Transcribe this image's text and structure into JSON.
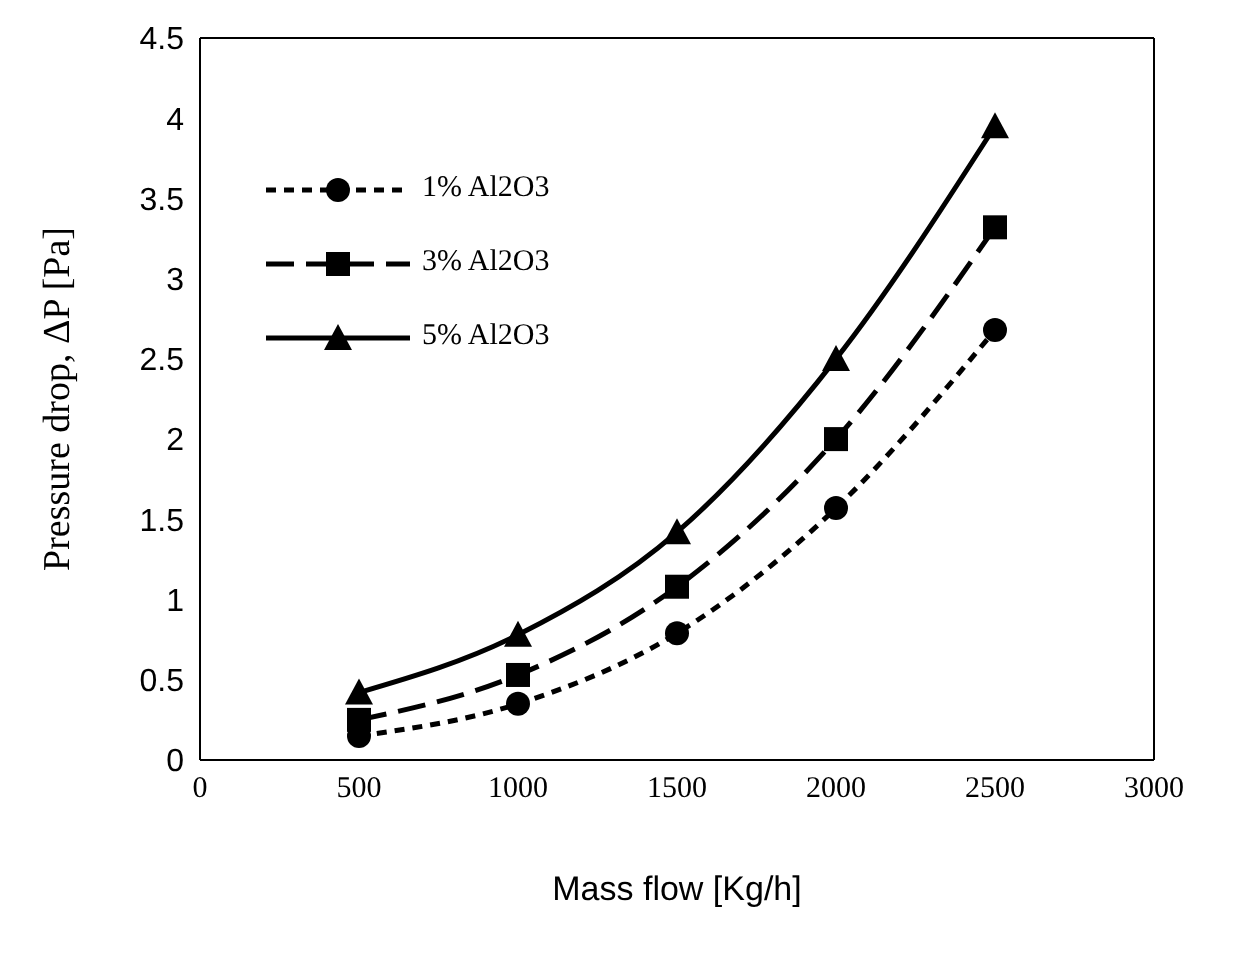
{
  "chart_data": {
    "type": "line",
    "xlabel": "Mass flow [Kg/h]",
    "ylabel": "Pressure drop, ΔP [Pa]",
    "x": [
      500,
      1000,
      1500,
      2000,
      2500
    ],
    "series": [
      {
        "name": "1% Al2O3",
        "color": "#000000",
        "marker": "circle",
        "line_style": "dotted",
        "values": [
          0.15,
          0.35,
          0.79,
          1.57,
          2.68
        ]
      },
      {
        "name": "3% Al2O3",
        "color": "#000000",
        "marker": "square",
        "line_style": "dashed",
        "values": [
          0.25,
          0.53,
          1.08,
          2.0,
          3.32
        ]
      },
      {
        "name": "5% Al2O3",
        "color": "#000000",
        "marker": "triangle",
        "line_style": "solid",
        "values": [
          0.42,
          0.78,
          1.42,
          2.5,
          3.95
        ]
      }
    ],
    "xlim": [
      0,
      3000
    ],
    "xticks": [
      0,
      500,
      1000,
      1500,
      2000,
      2500,
      3000
    ],
    "ylim": [
      0,
      4.5
    ],
    "yticks": [
      0,
      0.5,
      1,
      1.5,
      2,
      2.5,
      3,
      3.5,
      4,
      4.5
    ],
    "grid": false,
    "legend": "top left"
  }
}
